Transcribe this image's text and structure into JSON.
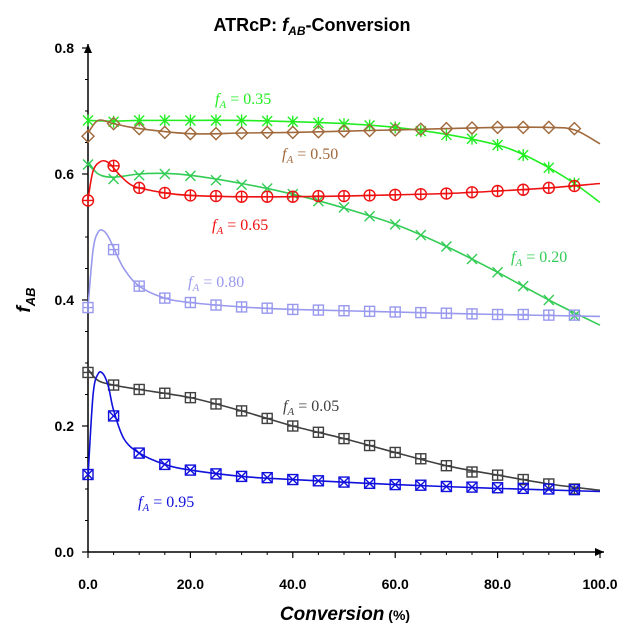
{
  "chart_data": {
    "type": "line",
    "title": {
      "prefix": "ATRcP: ",
      "var_main": "f",
      "var_sub": "AB",
      "suffix": "-Conversion"
    },
    "xlabel": {
      "main": "Conversion",
      "unit": " (%)"
    },
    "ylabel": {
      "main": "f",
      "sub": "AB"
    },
    "xlim": [
      0,
      100
    ],
    "ylim": [
      0,
      0.8
    ],
    "xticks": [
      0,
      20,
      40,
      60,
      80,
      100
    ],
    "xtick_labels": [
      "0.0",
      "20.0",
      "40.0",
      "60.0",
      "80.0",
      "100.0"
    ],
    "yticks": [
      0,
      0.2,
      0.4,
      0.6,
      0.8
    ],
    "ytick_labels": [
      "0.0",
      "0.2",
      "0.4",
      "0.6",
      "0.8"
    ],
    "grid": false,
    "series": [
      {
        "label": {
          "prefix": "f",
          "sub": "A",
          "value": " = 0.05"
        },
        "color": "#404040",
        "marker": "plus-square",
        "points": {
          "x": [
            0,
            5,
            10,
            15,
            20,
            25,
            30,
            35,
            40,
            45,
            50,
            55,
            60,
            65,
            70,
            75,
            80,
            85,
            90,
            95
          ],
          "y": [
            0.285,
            0.265,
            0.258,
            0.252,
            0.245,
            0.235,
            0.224,
            0.212,
            0.2,
            0.19,
            0.18,
            0.169,
            0.158,
            0.148,
            0.137,
            0.127,
            0.122,
            0.115,
            0.108,
            0.1
          ]
        },
        "curve": {
          "x": [
            0,
            2,
            5,
            10,
            20,
            30,
            40,
            50,
            60,
            70,
            80,
            90,
            100
          ],
          "y": [
            0.29,
            0.272,
            0.265,
            0.258,
            0.245,
            0.224,
            0.2,
            0.18,
            0.158,
            0.137,
            0.122,
            0.108,
            0.098
          ]
        }
      },
      {
        "label": {
          "prefix": "f",
          "sub": "A",
          "value": " = 0.20"
        },
        "color": "#33cc55",
        "marker": "x",
        "points": {
          "x": [
            0,
            5,
            10,
            15,
            20,
            25,
            30,
            35,
            40,
            45,
            50,
            55,
            60,
            65,
            70,
            75,
            80,
            85,
            90,
            95
          ],
          "y": [
            0.615,
            0.592,
            0.598,
            0.6,
            0.597,
            0.59,
            0.583,
            0.577,
            0.568,
            0.557,
            0.547,
            0.533,
            0.52,
            0.503,
            0.485,
            0.465,
            0.444,
            0.422,
            0.4,
            0.375
          ]
        },
        "curve": {
          "x": [
            0,
            2,
            5,
            10,
            15,
            20,
            30,
            40,
            50,
            60,
            70,
            80,
            90,
            100
          ],
          "y": [
            0.62,
            0.6,
            0.595,
            0.6,
            0.601,
            0.598,
            0.585,
            0.568,
            0.546,
            0.52,
            0.485,
            0.444,
            0.4,
            0.36
          ]
        }
      },
      {
        "label": {
          "prefix": "f",
          "sub": "A",
          "value": " = 0.35"
        },
        "color": "#22ee22",
        "marker": "asterisk",
        "points": {
          "x": [
            0,
            5,
            10,
            15,
            20,
            25,
            30,
            35,
            40,
            45,
            50,
            55,
            60,
            65,
            70,
            75,
            80,
            85,
            90,
            95
          ],
          "y": [
            0.685,
            0.683,
            0.685,
            0.685,
            0.685,
            0.685,
            0.685,
            0.684,
            0.683,
            0.681,
            0.679,
            0.677,
            0.674,
            0.668,
            0.662,
            0.656,
            0.646,
            0.63,
            0.61,
            0.585
          ]
        },
        "curve": {
          "x": [
            0,
            5,
            10,
            20,
            30,
            40,
            50,
            60,
            70,
            80,
            85,
            90,
            95,
            100
          ],
          "y": [
            0.685,
            0.684,
            0.685,
            0.685,
            0.685,
            0.683,
            0.68,
            0.674,
            0.663,
            0.646,
            0.631,
            0.61,
            0.585,
            0.555
          ]
        }
      },
      {
        "label": {
          "prefix": "f",
          "sub": "A",
          "value": " = 0.50"
        },
        "color": "#a0693c",
        "marker": "diamond",
        "points": {
          "x": [
            0,
            5,
            10,
            15,
            20,
            25,
            30,
            35,
            40,
            45,
            50,
            55,
            60,
            65,
            70,
            75,
            80,
            85,
            90,
            95
          ],
          "y": [
            0.66,
            0.68,
            0.672,
            0.666,
            0.664,
            0.664,
            0.665,
            0.666,
            0.666,
            0.667,
            0.668,
            0.669,
            0.67,
            0.671,
            0.672,
            0.673,
            0.674,
            0.674,
            0.674,
            0.672
          ]
        },
        "curve": {
          "x": [
            0,
            2,
            5,
            10,
            20,
            30,
            40,
            50,
            60,
            70,
            80,
            90,
            95,
            100
          ],
          "y": [
            0.665,
            0.685,
            0.68,
            0.672,
            0.664,
            0.665,
            0.666,
            0.668,
            0.67,
            0.672,
            0.674,
            0.674,
            0.67,
            0.648
          ]
        }
      },
      {
        "label": {
          "prefix": "f",
          "sub": "A",
          "value": " = 0.65"
        },
        "color": "#ee1111",
        "marker": "circle-plus",
        "points": {
          "x": [
            0,
            5,
            10,
            15,
            20,
            25,
            30,
            35,
            40,
            45,
            50,
            55,
            60,
            65,
            70,
            75,
            80,
            85,
            90,
            95
          ],
          "y": [
            0.558,
            0.613,
            0.578,
            0.57,
            0.566,
            0.565,
            0.564,
            0.564,
            0.564,
            0.565,
            0.565,
            0.566,
            0.567,
            0.568,
            0.569,
            0.571,
            0.573,
            0.575,
            0.578,
            0.581
          ]
        },
        "curve": {
          "x": [
            0,
            1,
            2.5,
            4,
            6,
            8,
            10,
            15,
            20,
            30,
            40,
            50,
            60,
            70,
            80,
            90,
            100
          ],
          "y": [
            0.56,
            0.605,
            0.62,
            0.618,
            0.6,
            0.585,
            0.578,
            0.57,
            0.566,
            0.564,
            0.564,
            0.565,
            0.567,
            0.569,
            0.573,
            0.578,
            0.585
          ]
        }
      },
      {
        "label": {
          "prefix": "f",
          "sub": "A",
          "value": " = 0.80"
        },
        "color": "#9999ee",
        "marker": "plus-square",
        "points": {
          "x": [
            0,
            5,
            10,
            15,
            20,
            25,
            30,
            35,
            40,
            45,
            50,
            55,
            60,
            65,
            70,
            75,
            80,
            85,
            90,
            95
          ],
          "y": [
            0.388,
            0.48,
            0.422,
            0.403,
            0.396,
            0.392,
            0.389,
            0.387,
            0.385,
            0.384,
            0.383,
            0.382,
            0.381,
            0.38,
            0.379,
            0.378,
            0.377,
            0.377,
            0.376,
            0.376
          ]
        },
        "curve": {
          "x": [
            0,
            1,
            2,
            3,
            4,
            5,
            7,
            10,
            15,
            20,
            30,
            40,
            60,
            80,
            100
          ],
          "y": [
            0.39,
            0.48,
            0.508,
            0.51,
            0.5,
            0.483,
            0.45,
            0.422,
            0.403,
            0.396,
            0.389,
            0.385,
            0.381,
            0.377,
            0.374
          ]
        }
      },
      {
        "label": {
          "prefix": "f",
          "sub": "A",
          "value": " = 0.95"
        },
        "color": "#1111dd",
        "marker": "x-square",
        "points": {
          "x": [
            0,
            5,
            10,
            15,
            20,
            25,
            30,
            35,
            40,
            45,
            50,
            55,
            60,
            65,
            70,
            75,
            80,
            85,
            90,
            95
          ],
          "y": [
            0.123,
            0.216,
            0.157,
            0.139,
            0.13,
            0.124,
            0.12,
            0.118,
            0.115,
            0.113,
            0.111,
            0.109,
            0.107,
            0.106,
            0.104,
            0.103,
            0.102,
            0.101,
            0.1,
            0.099
          ]
        },
        "curve": {
          "x": [
            0,
            1,
            2,
            3,
            4,
            5,
            7,
            10,
            15,
            20,
            30,
            40,
            60,
            80,
            100
          ],
          "y": [
            0.12,
            0.25,
            0.283,
            0.282,
            0.262,
            0.225,
            0.18,
            0.157,
            0.139,
            0.13,
            0.12,
            0.115,
            0.107,
            0.101,
            0.096
          ]
        }
      }
    ]
  }
}
